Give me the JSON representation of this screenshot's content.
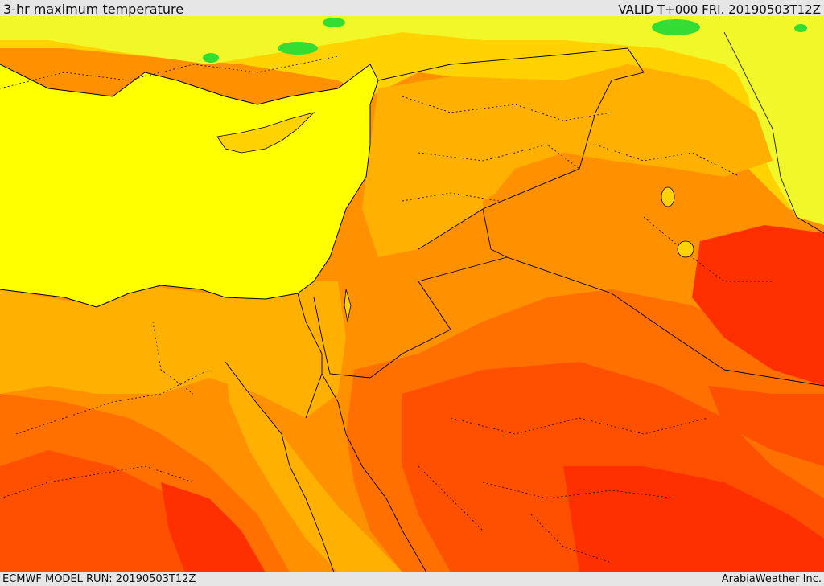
{
  "header": {
    "title": "3-hr maximum temperature",
    "valid": "VALID T+000 FRI. 20190503T12Z"
  },
  "footer": {
    "model_run": "ECMWF MODEL RUN: 20190503T12Z",
    "credit": "ArabiaWeather Inc."
  },
  "map": {
    "field": "3-hr maximum temperature",
    "palette": {
      "sea": "#ffff00",
      "cool_green": "#33dd33",
      "light_yellow": "#f2f72a",
      "yellow_orange": "#ffd200",
      "light_orange": "#ffb000",
      "orange": "#ff9000",
      "dark_orange": "#ff7000",
      "red_orange": "#ff5000",
      "red": "#ff3000",
      "boundary_color": "#000000"
    }
  }
}
